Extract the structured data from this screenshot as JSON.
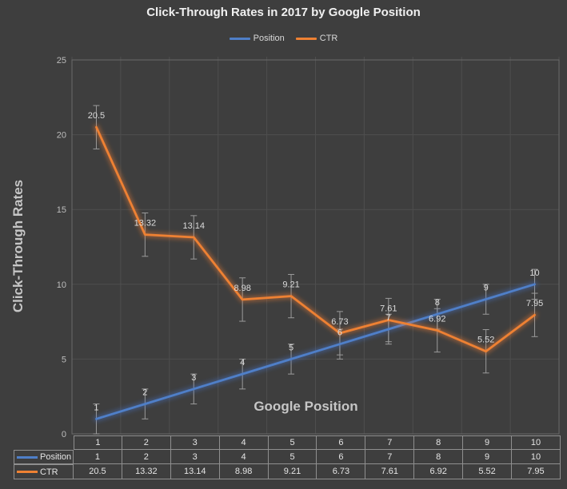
{
  "chart_data": {
    "type": "line",
    "title": "Click-Through Rates in 2017 by Google Position",
    "xlabel": "Google Position",
    "ylabel": "Click-Through Rates",
    "categories": [
      "1",
      "2",
      "3",
      "4",
      "5",
      "6",
      "7",
      "8",
      "9",
      "10"
    ],
    "series": [
      {
        "name": "Position",
        "color": "#4f7fc8",
        "glow_color": "#4472c4",
        "values": [
          1,
          2,
          3,
          4,
          5,
          6,
          7,
          8,
          9,
          10
        ],
        "error_bar": 1.0
      },
      {
        "name": "CTR",
        "color": "#ee8133",
        "glow_color": "#ed7d31",
        "values": [
          20.5,
          13.32,
          13.14,
          8.98,
          9.21,
          6.73,
          7.61,
          6.92,
          5.52,
          7.95
        ],
        "error_bar": 1.45
      }
    ],
    "ylim": [
      0,
      25
    ],
    "yticks": [
      0,
      5,
      10,
      15,
      20,
      25
    ],
    "grid": true,
    "legend_position": "top",
    "data_table_shown": true
  },
  "colors": {
    "background": "#3e3e3e",
    "gridline": "#4e4e4e",
    "plot_border": "#6a6a6a",
    "error_bar": "#9b9b9b",
    "table_border": "#8f8f8f",
    "tick_label": "#bdbdbd",
    "data_label": "#dcdcdc"
  }
}
